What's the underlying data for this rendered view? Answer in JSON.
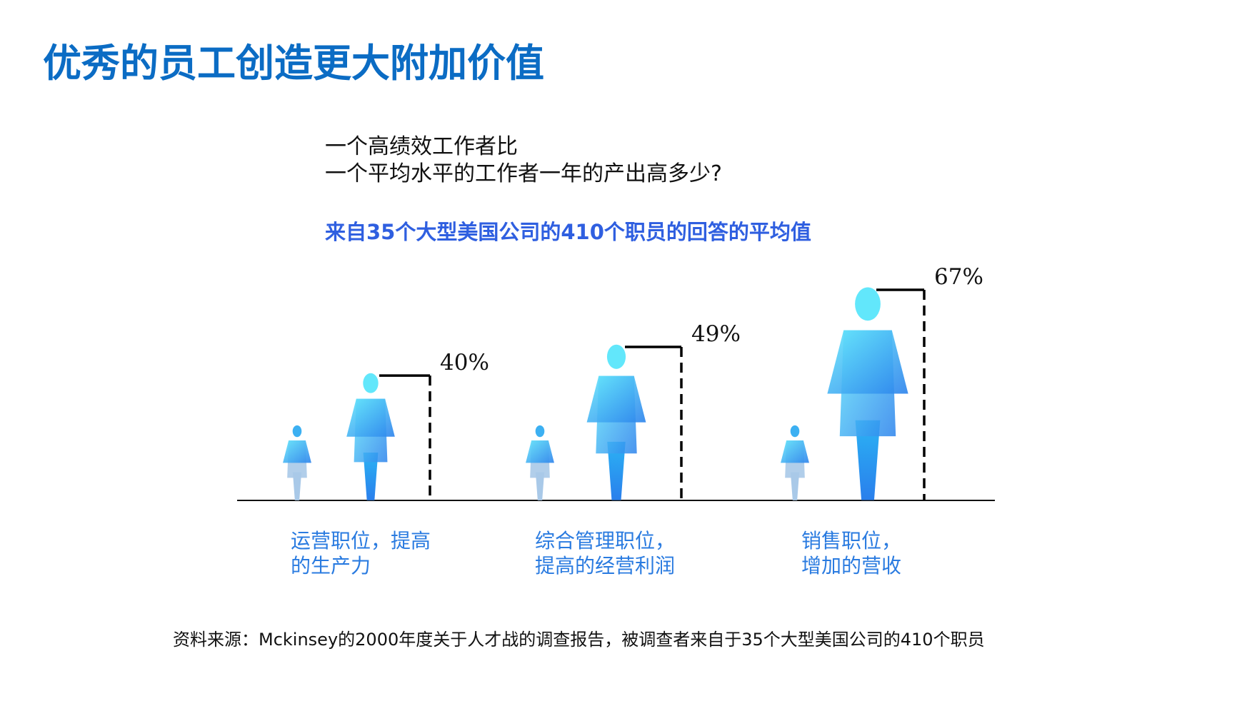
{
  "title": "优秀的员工创造更大附加价值",
  "question": [
    "一个高绩效工作者比",
    "一个平均水平的工作者一年的产出高多少?"
  ],
  "subtitle": "来自35个大型美国公司的410个职员的回答的平均值",
  "chart_data": {
    "type": "pictogram",
    "unit": "%",
    "categories": [
      "运营职位，提高的生产力",
      "综合管理职位，提高的经营利润",
      "销售职位，增加的营收"
    ],
    "category_lines": [
      [
        "运营职位，提高",
        "的生产力"
      ],
      [
        "综合管理职位，",
        "提高的经营利润"
      ],
      [
        "销售职位，",
        "增加的营收"
      ]
    ],
    "values": [
      40,
      49,
      67
    ],
    "value_labels": [
      "40%",
      "49%",
      "67%"
    ],
    "baseline": 0,
    "colors": {
      "figure_light": "#63e6fb",
      "figure_dark": "#2b82ec",
      "average_figure_legs": "#a9c9e8"
    }
  },
  "footer": "资料来源：Mckinsey的2000年度关于人才战的调查报告，被调查者来自于35个大型美国公司的410个职员"
}
